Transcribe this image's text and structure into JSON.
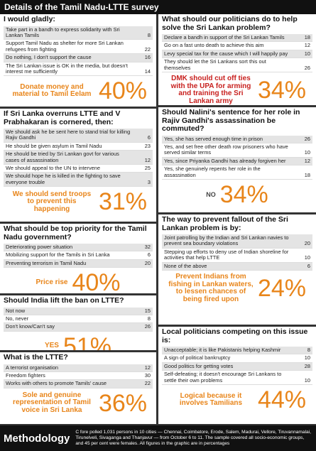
{
  "header": {
    "title": "Details of the Tamil Nadu-LTTE survey"
  },
  "sections": [
    {
      "question": "I would gladly:",
      "rows": [
        [
          "Take part in a bandh to express solidarity with Sri Lankan Tamils",
          8
        ],
        [
          "Support Tamil Nadu as shelter for more Sri Lankan refugees from fighting",
          22
        ],
        [
          "Do nothing, I don't support the cause",
          16
        ],
        [
          "The Sri Lankan issue is OK in the media, but doesn't interest me sufficiently",
          14
        ]
      ],
      "highlight": {
        "text": "Donate money and material to Tamil Eelam",
        "pct": "40%"
      }
    },
    {
      "question": "If Sri Lanka overruns LTTE and V Prabhakaran is cornered, then:",
      "rows": [
        [
          "We should ask he be sent here to stand trial for killing Rajiv Gandhi",
          6
        ],
        [
          "He should be given asylum in Tamil Nadu",
          23
        ],
        [
          "He should be tried by Sri Lankan govt for various cases of assassination",
          12
        ],
        [
          "We should appeal to the UN to intervene",
          25
        ],
        [
          "We should hope he is killed in the fighting to save everyone trouble",
          3
        ]
      ],
      "highlight": {
        "text": "We should send troops to prevent this happening",
        "pct": "31%"
      }
    },
    {
      "question": "What should be top priority for the Tamil Nadu government?",
      "rows": [
        [
          "Deteriorating power situation",
          32
        ],
        [
          "Mobilizing support for the Tamils in Sri Lanka",
          6
        ],
        [
          "Preventing terrorism in Tamil Nadu",
          20
        ]
      ],
      "highlight": {
        "text": "Price rise",
        "pct": "40%"
      }
    },
    {
      "question": "Should India lift the ban on LTTE?",
      "rows": [
        [
          "Not now",
          15
        ],
        [
          "No, never",
          8
        ],
        [
          "Don't know/Can't say",
          26
        ]
      ],
      "highlight": {
        "text": "YES",
        "pct": "51%"
      }
    },
    {
      "question": "What is the LTTE?",
      "rows": [
        [
          "A terrorist organisation",
          12
        ],
        [
          "Freedom fighters",
          30
        ],
        [
          "Works with others to promote Tamils' cause",
          22
        ]
      ],
      "highlight": {
        "text": "Sole and genuine representation of Tamil voice in Sri Lanka",
        "pct": "36%"
      }
    },
    {
      "question": "What should our politicians do to help solve the Sri Lankan problem?",
      "rows": [
        [
          "Declare a bandh in support of the Sri Lankan Tamils",
          18
        ],
        [
          "Go on a fast unto death to achieve this aim",
          12
        ],
        [
          "Levy special tax for the cause which I will happily pay",
          10
        ],
        [
          "They should let the Sri Lankans sort this out themselves",
          26
        ]
      ],
      "highlight": {
        "text": "DMK should cut off ties with the UPA for arming and training the Sri Lankan army",
        "pct": "34%"
      }
    },
    {
      "question": "Should Nalini's sentence for her role in Rajiv Gandhi's assassination be commuted?",
      "rows": [
        [
          "Yes, she has served enough time in prison",
          26
        ],
        [
          "Yes, and set free other death row prisoners who have served similar terms",
          10
        ],
        [
          "Yes, since Priyanka Gandhi has already forgiven her",
          12
        ],
        [
          "Yes, she genuinely repents her role in the assassination",
          18
        ]
      ],
      "highlight": {
        "text": "NO",
        "pct": "34%"
      }
    },
    {
      "question": "The way to prevent fallout of the Sri Lankan problem is by:",
      "rows": [
        [
          "Joint patrolling by the Indian and Sri Lankan navies to prevent sea boundary violations",
          20
        ],
        [
          "Stepping up efforts to deny use of Indian shoreline for activities that help LTTE",
          10
        ],
        [
          "None of the above",
          6
        ]
      ],
      "highlight": {
        "text": "Prevent Indians from fishing in Lankan waters, to lessen chances of being fired upon",
        "pct": "24%"
      }
    },
    {
      "question": "Local politicians competing on this issue is:",
      "rows": [
        [
          "Unacceptable; it is like Pakistanis helping Kashmir",
          8
        ],
        [
          "A sign of political bankruptcy",
          10
        ],
        [
          "Good politics for getting votes",
          28
        ],
        [
          "Self-defeating; it doesn't encourage Sri Lankans to settle their own problems",
          10
        ]
      ],
      "highlight": {
        "text": "Logical because it involves Tamilians",
        "pct": "44%"
      }
    }
  ],
  "footer": {
    "title": "Methodology",
    "text": "C fore polled 1,031 persons in 10 cities — Chennai, Coimbatore, Erode, Salem, Madurai, Vellore, Tiruvannamalai, Tirunelveli, Sivaganga and Thanjavur — from October 6 to 11. The sample covered all socio-economic groups, and 45 per cent were females. All figures in the graphic are in percentages"
  }
}
